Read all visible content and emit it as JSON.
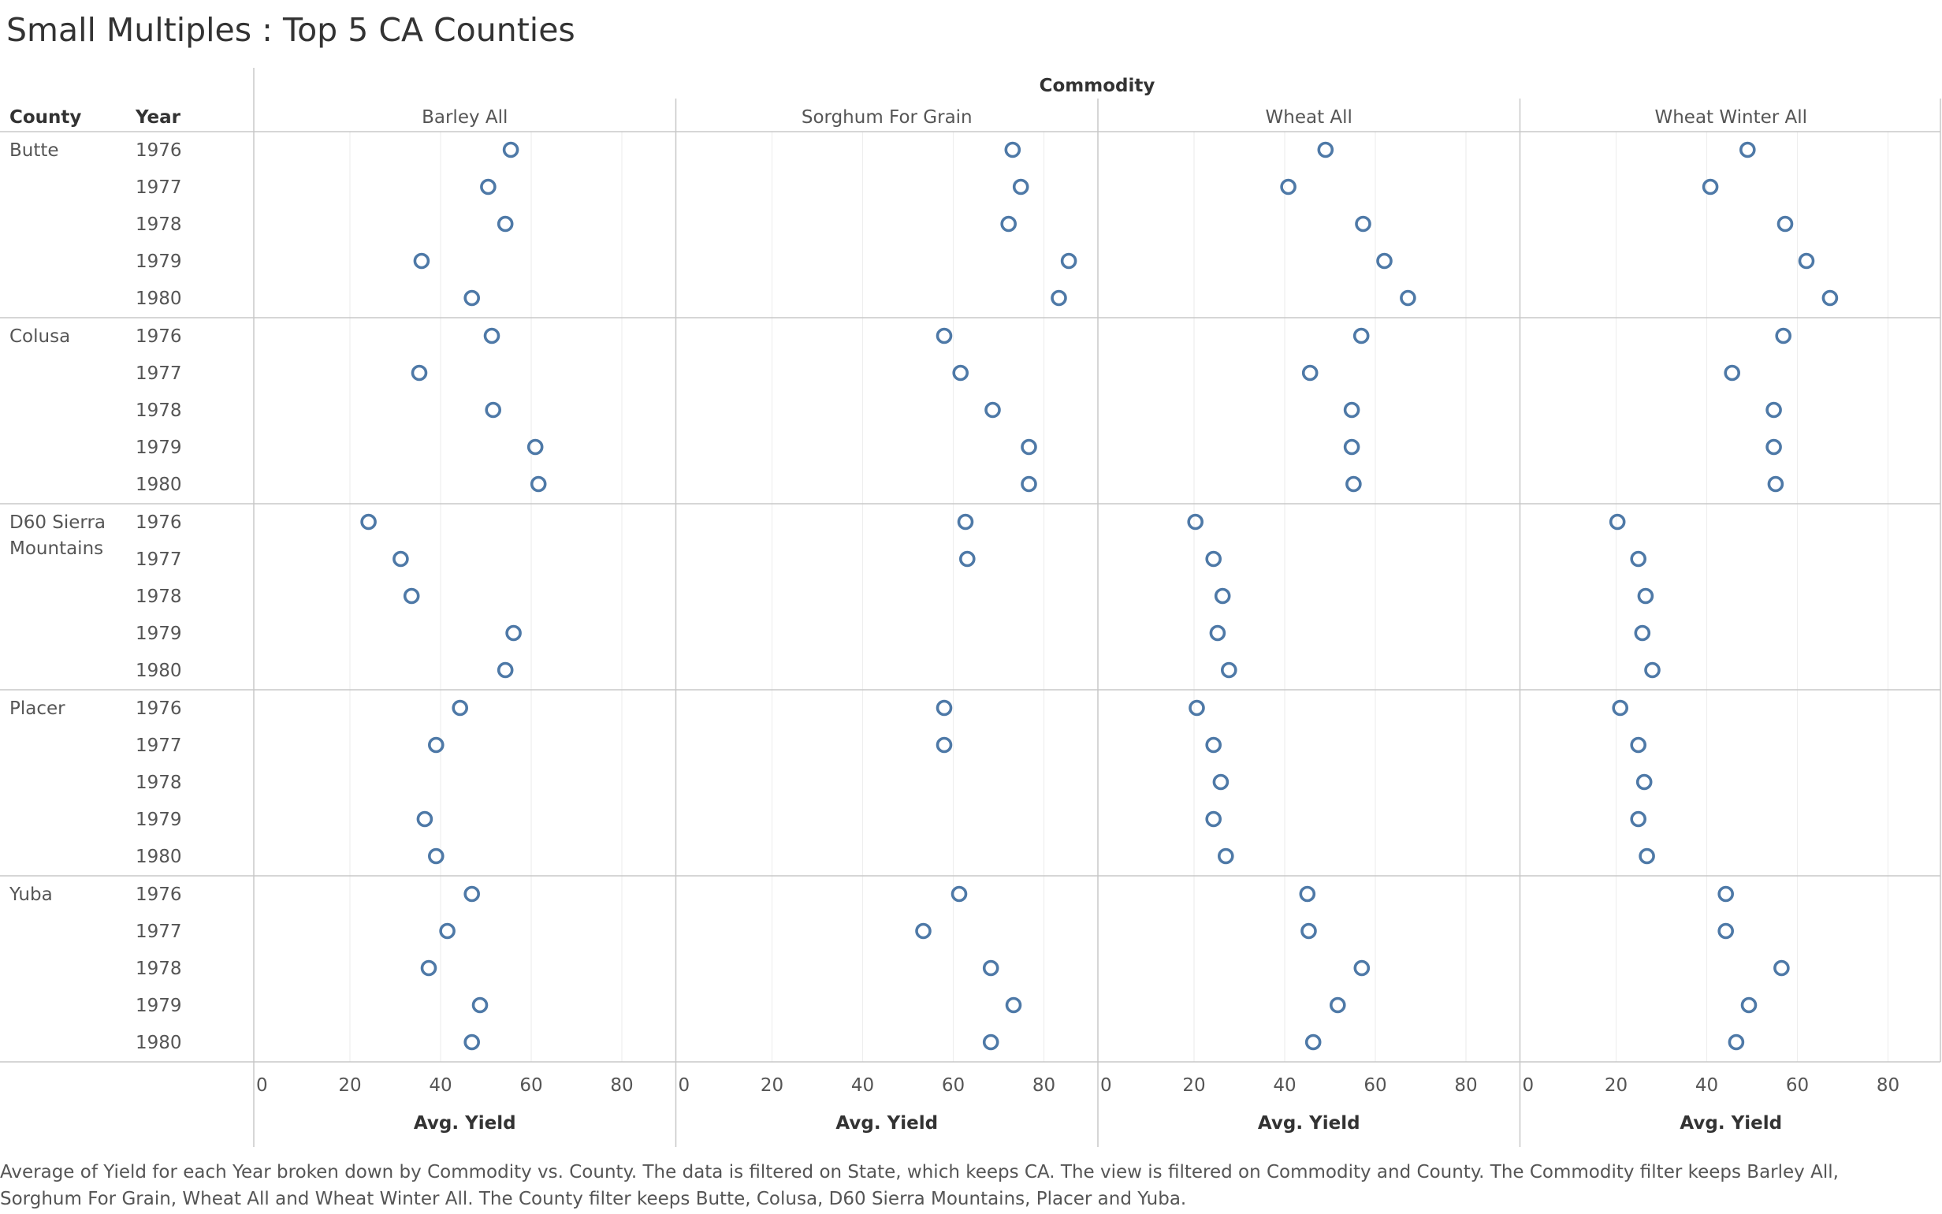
{
  "title": "Small Multiples : Top 5 CA Counties",
  "column_header": "Commodity",
  "row_headers": {
    "county": "County",
    "year": "Year"
  },
  "caption": "Average of Yield for each Year broken down by Commodity vs. County. The data is filtered on State, which keeps CA. The view is filtered on Commodity and County. The Commodity filter keeps Barley  All, Sorghum  For Grain, Wheat  All and Wheat  Winter All. The County filter keeps Butte, Colusa, D60 Sierra Mountains, Placer and Yuba.",
  "colors": {
    "mark": "#4e79a7",
    "grid": "#eeeeee",
    "border": "#c8c8c8",
    "text": "#333333"
  },
  "chart_data": {
    "type": "scatter",
    "mark": "open-circle",
    "x_axis": {
      "label": "Avg. Yield",
      "ticks": [
        0,
        20,
        40,
        60,
        80
      ],
      "range": [
        0,
        93
      ]
    },
    "commodities": [
      "Barley  All",
      "Sorghum  For Grain",
      "Wheat  All",
      "Wheat  Winter All"
    ],
    "years": [
      "1976",
      "1977",
      "1978",
      "1979",
      "1980"
    ],
    "counties": [
      {
        "name": "Butte",
        "label_lines": [
          "Butte"
        ],
        "values": [
          [
            55.5,
            50.5,
            54.3,
            35.8,
            46.9
          ],
          [
            73.1,
            74.9,
            72.2,
            85.5,
            83.3
          ],
          [
            49.0,
            40.8,
            57.3,
            62.0,
            67.2
          ],
          [
            49.0,
            40.8,
            57.3,
            62.0,
            67.2
          ]
        ]
      },
      {
        "name": "Colusa",
        "label_lines": [
          "Colusa"
        ],
        "values": [
          [
            51.3,
            35.3,
            51.6,
            60.9,
            61.6
          ],
          [
            58.0,
            61.6,
            68.7,
            76.7,
            76.7
          ],
          [
            56.9,
            45.6,
            54.8,
            54.8,
            55.2
          ],
          [
            56.9,
            45.6,
            54.8,
            54.8,
            55.2
          ]
        ]
      },
      {
        "name": "D60 Sierra Mountains",
        "label_lines": [
          "D60 Sierra",
          "Mountains"
        ],
        "values": [
          [
            24.1,
            31.2,
            33.6,
            56.1,
            54.3
          ],
          [
            62.7,
            63.1,
            null,
            null,
            null
          ],
          [
            20.3,
            24.3,
            26.3,
            25.2,
            27.7
          ],
          [
            20.3,
            24.9,
            26.5,
            25.8,
            28.0
          ]
        ]
      },
      {
        "name": "Placer",
        "label_lines": [
          "Placer"
        ],
        "values": [
          [
            44.3,
            39.0,
            null,
            36.5,
            39.0
          ],
          [
            58.0,
            58.0,
            null,
            null,
            null
          ],
          [
            20.6,
            24.3,
            25.9,
            24.3,
            27.0
          ],
          [
            20.9,
            24.9,
            26.2,
            24.9,
            26.8
          ]
        ]
      },
      {
        "name": "Yuba",
        "label_lines": [
          "Yuba"
        ],
        "values": [
          [
            46.9,
            41.5,
            37.4,
            48.7,
            46.9
          ],
          [
            61.3,
            53.4,
            68.3,
            73.3,
            68.3
          ],
          [
            45.0,
            45.3,
            57.0,
            51.7,
            46.3
          ],
          [
            44.2,
            44.2,
            56.5,
            49.3,
            46.5
          ]
        ]
      }
    ]
  }
}
